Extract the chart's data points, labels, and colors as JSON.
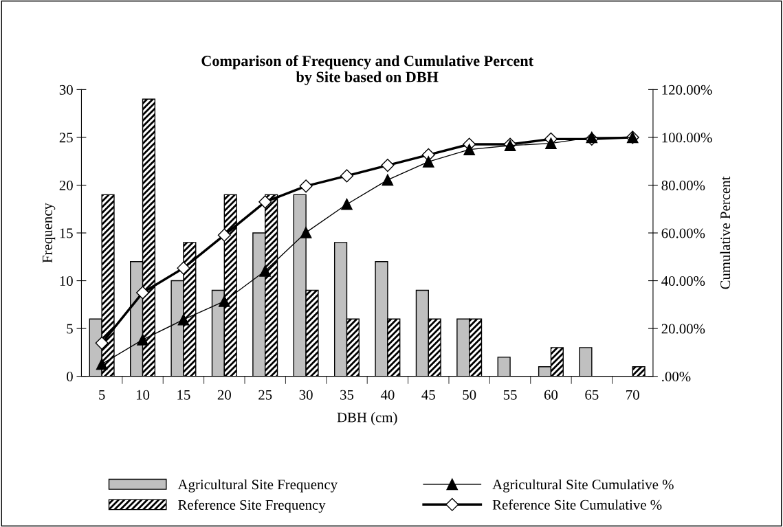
{
  "chart_data": {
    "type": "bar",
    "title": "Comparison of Frequency and Cumulative Percent\nby Site based on DBH",
    "xlabel": "DBH (cm)",
    "ylabel": "Frequency",
    "y2label": "Cumulative Percent",
    "categories": [
      "5",
      "10",
      "15",
      "20",
      "25",
      "30",
      "35",
      "40",
      "45",
      "50",
      "55",
      "60",
      "65",
      "70"
    ],
    "series": [
      {
        "name": "Agricultural Site Frequency",
        "color": "#c0c0c0",
        "values": [
          6,
          12,
          10,
          9,
          15,
          19,
          14,
          12,
          9,
          6,
          2,
          1,
          3,
          0
        ]
      },
      {
        "name": "Reference Site Frequency",
        "color": "#000000",
        "values": [
          19,
          29,
          14,
          19,
          19,
          9,
          6,
          6,
          6,
          6,
          0,
          3,
          0,
          1
        ]
      },
      {
        "name": "Agricultural Site Cumulative %",
        "type": "line",
        "axis": "y2",
        "color": "#000000",
        "marker": "triangle",
        "values": [
          5.1,
          15.3,
          23.7,
          31.4,
          44.1,
          60.2,
          72.0,
          82.2,
          89.8,
          94.9,
          96.6,
          97.5,
          100,
          100
        ]
      },
      {
        "name": "Reference Site Cumulative %",
        "type": "line",
        "axis": "y2",
        "color": "#000000",
        "marker": "diamond",
        "values": [
          13.9,
          35.0,
          45.3,
          59.1,
          73.0,
          79.6,
          83.9,
          88.3,
          92.7,
          97.1,
          97.1,
          99.3,
          99.3,
          100
        ]
      }
    ],
    "ylim": [
      0,
      30
    ],
    "yticks": [
      0,
      5,
      10,
      15,
      20,
      25,
      30
    ],
    "y2lim": [
      0,
      120
    ],
    "y2ticks": [
      {
        "value": 0,
        "label": ".00%"
      },
      {
        "value": 20,
        "label": "20.00%"
      },
      {
        "value": 40,
        "label": "40.00%"
      },
      {
        "value": 60,
        "label": "60.00%"
      },
      {
        "value": 80,
        "label": "80.00%"
      },
      {
        "value": 100,
        "label": "100.00%"
      },
      {
        "value": 120,
        "label": "120.00%"
      }
    ],
    "grid": false,
    "legend": "bottom",
    "line_style": "solid"
  }
}
